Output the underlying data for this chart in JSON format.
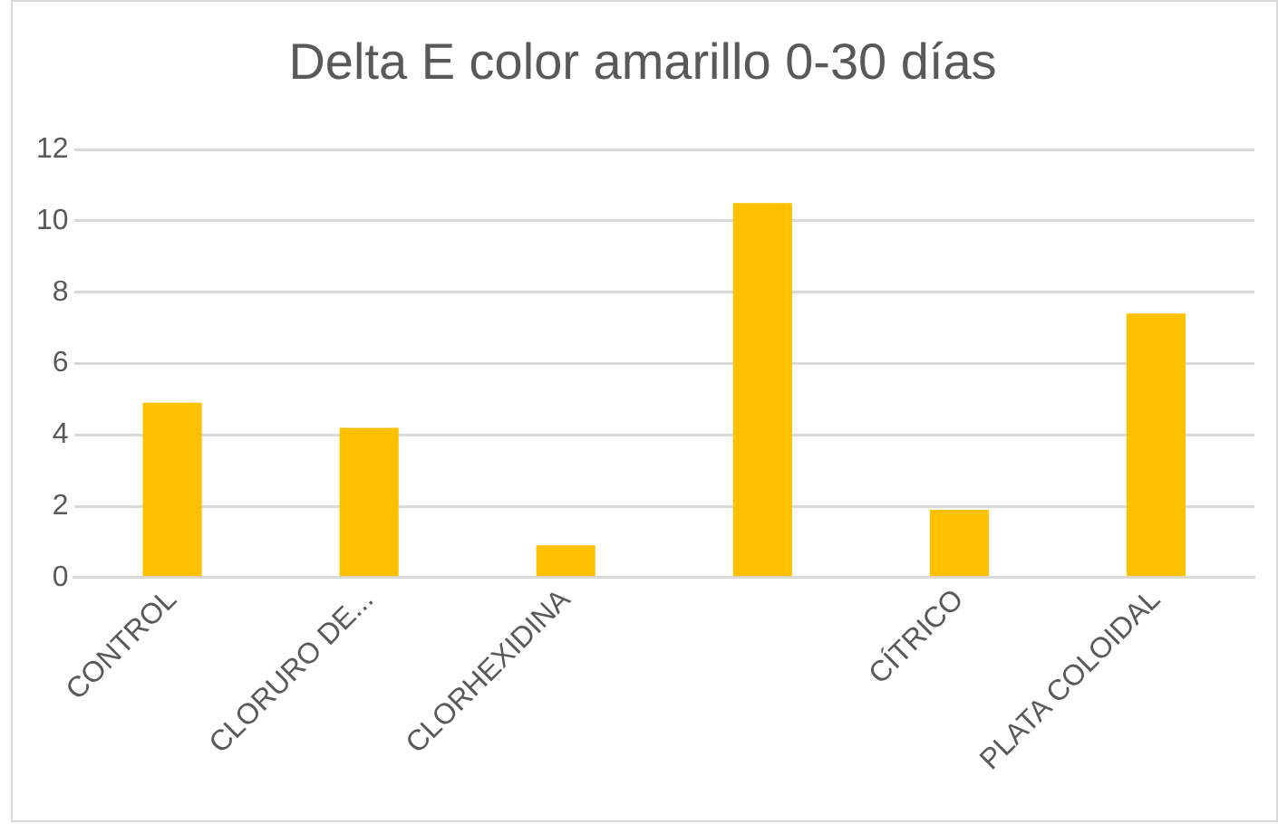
{
  "chart_data": {
    "type": "bar",
    "title": "Delta E color amarillo 0-30 días",
    "categories": [
      "CONTROL",
      "CLORURO DE...",
      "CLORHEXIDINA",
      null,
      "CÍTRICO",
      "PLATA COLOIDAL"
    ],
    "values": [
      4.9,
      4.2,
      0.9,
      10.5,
      1.9,
      7.4
    ],
    "color": "#ffc000",
    "ylim": [
      0,
      12
    ],
    "yticks": [
      0,
      2,
      4,
      6,
      8,
      10,
      12
    ],
    "grid": "y"
  }
}
